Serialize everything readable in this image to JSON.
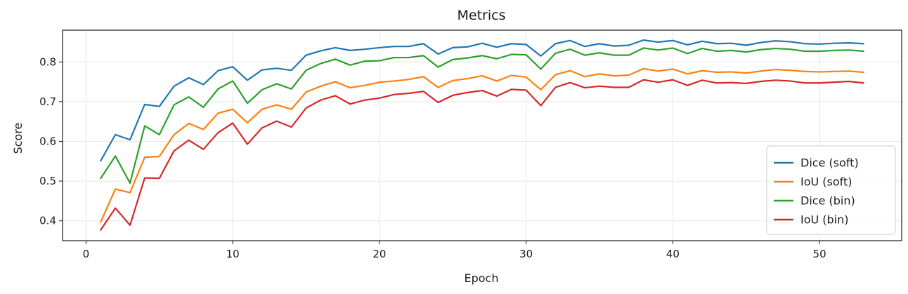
{
  "chart_data": {
    "type": "line",
    "title": "Metrics",
    "xlabel": "Epoch",
    "ylabel": "Score",
    "xlim": [
      -1.6,
      55.6
    ],
    "ylim": [
      0.35,
      0.88
    ],
    "xticks": [
      0,
      10,
      20,
      30,
      40,
      50
    ],
    "yticks": [
      0.4,
      0.5,
      0.6,
      0.7,
      0.8
    ],
    "ytick_labels": [
      "0.4",
      "0.5",
      "0.6",
      "0.7",
      "0.8"
    ],
    "grid": true,
    "legend_position": "lower-right",
    "x": [
      1,
      2,
      3,
      4,
      5,
      6,
      7,
      8,
      9,
      10,
      11,
      12,
      13,
      14,
      15,
      16,
      17,
      18,
      19,
      20,
      21,
      22,
      23,
      24,
      25,
      26,
      27,
      28,
      29,
      30,
      31,
      32,
      33,
      34,
      35,
      36,
      37,
      38,
      39,
      40,
      41,
      42,
      43,
      44,
      45,
      46,
      47,
      48,
      49,
      50,
      51,
      52,
      53
    ],
    "series": [
      {
        "name": "Dice (soft)",
        "color": "#1f77b4",
        "values": [
          0.551,
          0.617,
          0.604,
          0.693,
          0.688,
          0.739,
          0.76,
          0.743,
          0.778,
          0.788,
          0.754,
          0.78,
          0.784,
          0.779,
          0.817,
          0.828,
          0.836,
          0.829,
          0.832,
          0.836,
          0.839,
          0.839,
          0.846,
          0.82,
          0.836,
          0.838,
          0.847,
          0.837,
          0.846,
          0.844,
          0.815,
          0.846,
          0.854,
          0.839,
          0.846,
          0.84,
          0.842,
          0.855,
          0.85,
          0.854,
          0.843,
          0.852,
          0.846,
          0.847,
          0.842,
          0.849,
          0.853,
          0.851,
          0.846,
          0.845,
          0.847,
          0.848,
          0.846
        ]
      },
      {
        "name": "IoU (soft)",
        "color": "#ff7f0e",
        "values": [
          0.397,
          0.48,
          0.471,
          0.56,
          0.562,
          0.617,
          0.645,
          0.63,
          0.671,
          0.681,
          0.647,
          0.681,
          0.692,
          0.681,
          0.724,
          0.739,
          0.75,
          0.735,
          0.741,
          0.749,
          0.752,
          0.756,
          0.763,
          0.736,
          0.753,
          0.758,
          0.765,
          0.752,
          0.766,
          0.762,
          0.73,
          0.768,
          0.778,
          0.763,
          0.77,
          0.765,
          0.767,
          0.783,
          0.777,
          0.782,
          0.77,
          0.778,
          0.774,
          0.775,
          0.772,
          0.777,
          0.781,
          0.779,
          0.776,
          0.775,
          0.776,
          0.777,
          0.774
        ]
      },
      {
        "name": "Dice (bin)",
        "color": "#2ca02c",
        "values": [
          0.507,
          0.563,
          0.495,
          0.639,
          0.617,
          0.692,
          0.712,
          0.686,
          0.732,
          0.752,
          0.696,
          0.73,
          0.745,
          0.732,
          0.779,
          0.796,
          0.807,
          0.792,
          0.802,
          0.803,
          0.811,
          0.811,
          0.816,
          0.787,
          0.806,
          0.81,
          0.816,
          0.808,
          0.819,
          0.818,
          0.782,
          0.822,
          0.832,
          0.817,
          0.823,
          0.817,
          0.817,
          0.835,
          0.83,
          0.835,
          0.821,
          0.834,
          0.827,
          0.829,
          0.825,
          0.831,
          0.834,
          0.832,
          0.827,
          0.827,
          0.829,
          0.83,
          0.827
        ]
      },
      {
        "name": "IoU (bin)",
        "color": "#d62728",
        "values": [
          0.377,
          0.432,
          0.389,
          0.508,
          0.507,
          0.576,
          0.603,
          0.58,
          0.622,
          0.646,
          0.593,
          0.634,
          0.651,
          0.636,
          0.684,
          0.704,
          0.715,
          0.694,
          0.704,
          0.709,
          0.718,
          0.721,
          0.726,
          0.698,
          0.716,
          0.723,
          0.728,
          0.714,
          0.731,
          0.729,
          0.69,
          0.736,
          0.748,
          0.735,
          0.739,
          0.736,
          0.736,
          0.755,
          0.749,
          0.755,
          0.741,
          0.754,
          0.747,
          0.748,
          0.746,
          0.751,
          0.754,
          0.752,
          0.747,
          0.747,
          0.749,
          0.751,
          0.747
        ]
      }
    ]
  }
}
